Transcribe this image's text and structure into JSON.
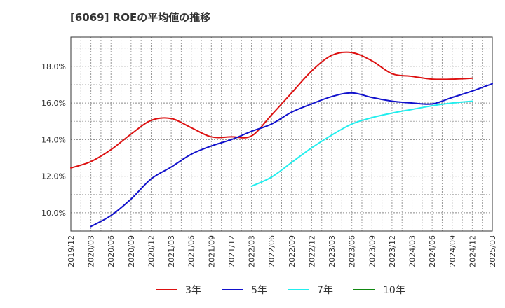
{
  "chart_data": {
    "type": "line",
    "title": "[6069]  ROEの平均値の推移",
    "xlabel": "",
    "ylabel": "",
    "grid": true,
    "legend_position": "bottom",
    "ylim": [
      9.0,
      19.6
    ],
    "yticks": [
      10.0,
      12.0,
      14.0,
      16.0,
      18.0
    ],
    "ytick_labels": [
      "10.0%",
      "12.0%",
      "14.0%",
      "16.0%",
      "18.0%"
    ],
    "x_ticks": [
      "2019/12",
      "2020/03",
      "2020/06",
      "2020/09",
      "2020/12",
      "2021/03",
      "2021/06",
      "2021/09",
      "2021/12",
      "2022/03",
      "2022/06",
      "2022/09",
      "2022/12",
      "2023/03",
      "2023/06",
      "2023/09",
      "2023/12",
      "2024/03",
      "2024/06",
      "2024/09",
      "2024/12",
      "2025/03"
    ],
    "series": [
      {
        "name": "3年",
        "color": "#dd1111",
        "start_index": 0,
        "values": [
          12.45,
          12.8,
          13.45,
          14.3,
          15.05,
          15.15,
          14.65,
          14.15,
          14.15,
          14.2,
          15.35,
          16.55,
          17.75,
          18.6,
          18.75,
          18.3,
          17.6,
          17.45,
          17.3,
          17.3,
          17.35
        ]
      },
      {
        "name": "5年",
        "color": "#1111cc",
        "start_index": 1,
        "values": [
          9.25,
          9.85,
          10.75,
          11.85,
          12.5,
          13.2,
          13.65,
          14.0,
          14.45,
          14.85,
          15.5,
          15.95,
          16.35,
          16.55,
          16.3,
          16.1,
          16.0,
          15.95,
          16.3,
          16.65,
          17.05
        ]
      },
      {
        "name": "7年",
        "color": "#22eeee",
        "start_index": 9,
        "values": [
          11.45,
          11.95,
          12.75,
          13.55,
          14.25,
          14.85,
          15.2,
          15.45,
          15.65,
          15.85,
          16.0,
          16.1
        ]
      },
      {
        "name": "10年",
        "color": "#118811",
        "start_index": 0,
        "values": []
      }
    ]
  }
}
